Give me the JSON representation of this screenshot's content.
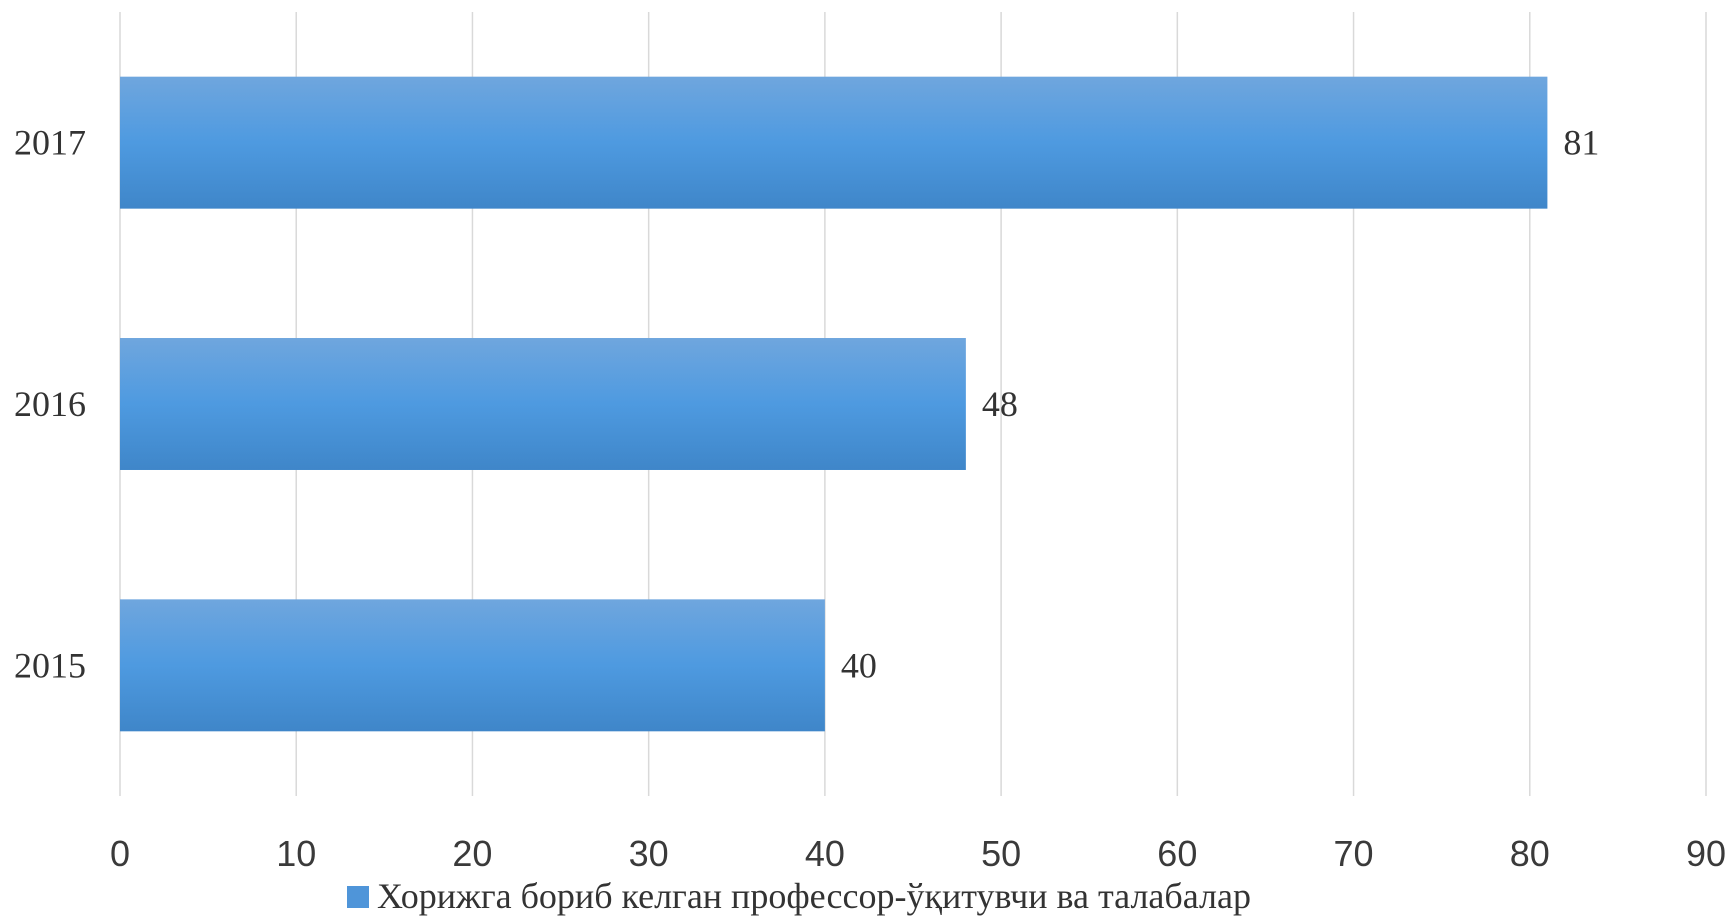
{
  "chart_data": {
    "type": "bar",
    "orientation": "horizontal",
    "categories": [
      "2015",
      "2016",
      "2017"
    ],
    "series": [
      {
        "name": "Хорижга бориб келган профессор-ўқитувчи ва талабалар",
        "values": [
          40,
          48,
          81
        ],
        "color": "#4f95d9"
      }
    ],
    "xlim": [
      0,
      90
    ],
    "x_ticks": [
      0,
      10,
      20,
      30,
      40,
      50,
      60,
      70,
      80,
      90
    ],
    "grid": true,
    "legend_position": "bottom"
  }
}
